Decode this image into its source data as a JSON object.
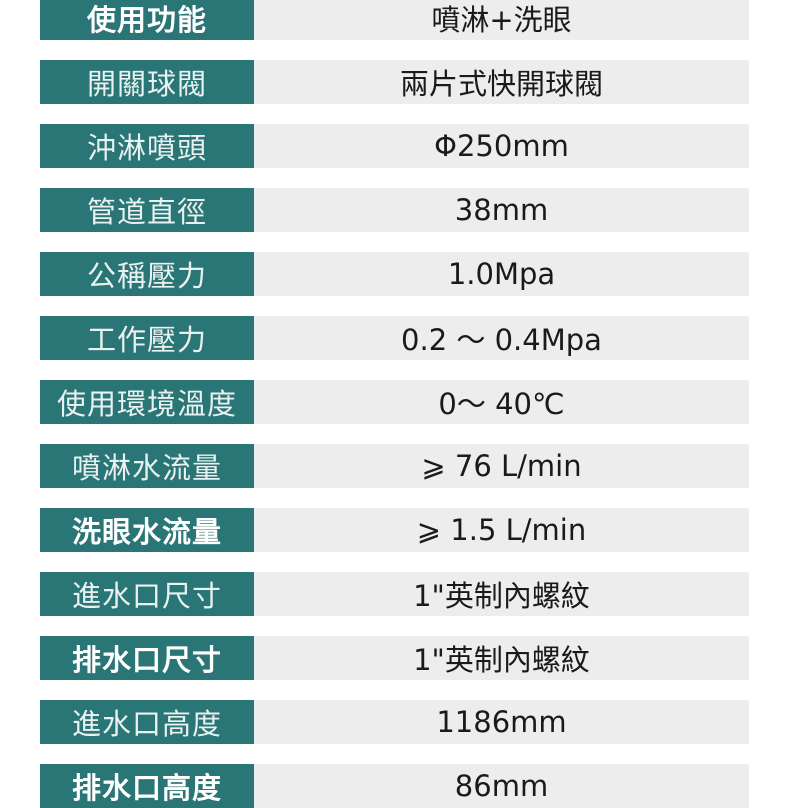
{
  "colors": {
    "label_bg": "#2a7575",
    "value_bg": "#ededed"
  },
  "specs": [
    {
      "label": "使用功能",
      "value": "噴淋+洗眼"
    },
    {
      "label": "開關球閥",
      "value": "兩片式快開球閥"
    },
    {
      "label": "沖淋噴頭",
      "value": "Φ250mm"
    },
    {
      "label": "管道直徑",
      "value": "38mm"
    },
    {
      "label": "公稱壓力",
      "value": "1.0Mpa"
    },
    {
      "label": "工作壓力",
      "value": "0.2 ～ 0.4Mpa"
    },
    {
      "label": "使用環境溫度",
      "value": "0～ 40℃"
    },
    {
      "label": "噴淋水流量",
      "value": "⩾ 76 L/min"
    },
    {
      "label": "洗眼水流量",
      "value": "⩾ 1.5 L/min"
    },
    {
      "label": "進水口尺寸",
      "value": "1\"英制內螺紋"
    },
    {
      "label": "排水口尺寸",
      "value": "1\"英制內螺紋"
    },
    {
      "label": "進水口高度",
      "value": "1186mm"
    },
    {
      "label": "排水口高度",
      "value": "86mm"
    }
  ]
}
